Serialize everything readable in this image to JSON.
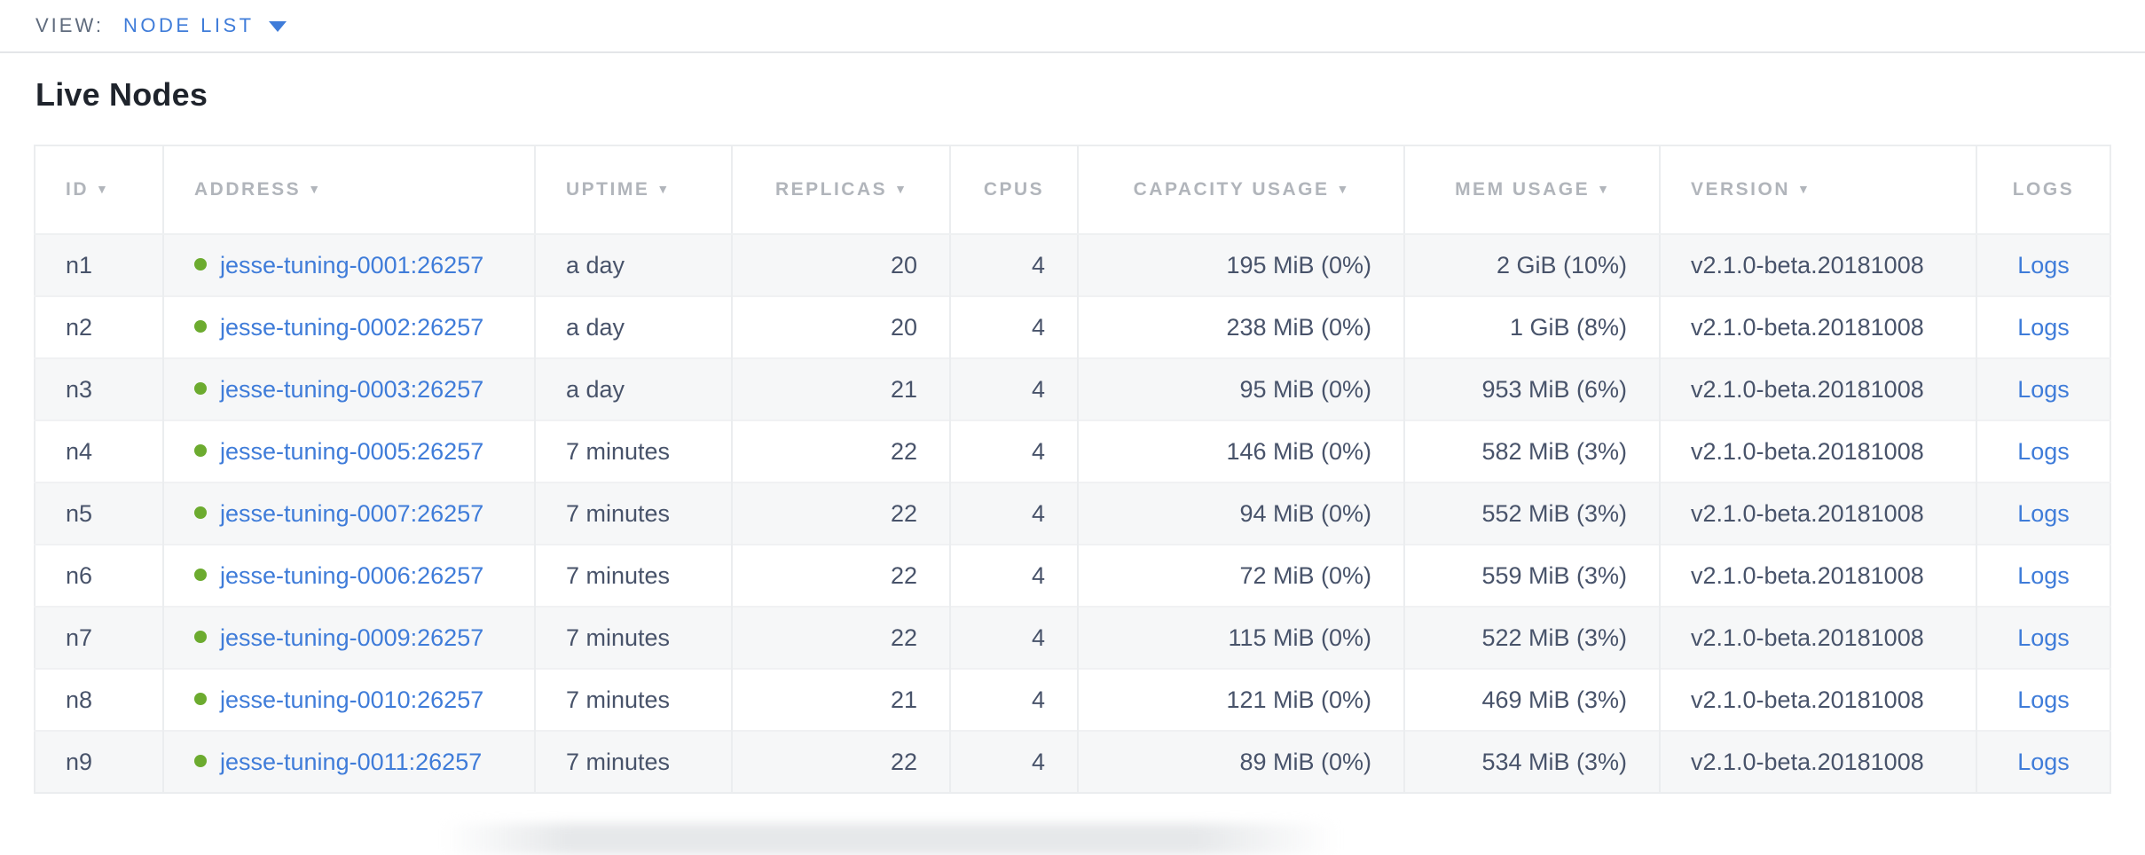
{
  "view_bar": {
    "label": "VIEW:",
    "selected": "NODE LIST",
    "dropdown_icon": "caret-down"
  },
  "page": {
    "title": "Live Nodes"
  },
  "table": {
    "sort_indicator": "▼",
    "columns": [
      {
        "key": "id",
        "label": "ID",
        "sortable": true
      },
      {
        "key": "address",
        "label": "ADDRESS",
        "sortable": true
      },
      {
        "key": "uptime",
        "label": "UPTIME",
        "sortable": true
      },
      {
        "key": "replicas",
        "label": "REPLICAS",
        "sortable": true
      },
      {
        "key": "cpus",
        "label": "CPUS",
        "sortable": false
      },
      {
        "key": "capacity",
        "label": "CAPACITY USAGE",
        "sortable": true
      },
      {
        "key": "mem",
        "label": "MEM USAGE",
        "sortable": true
      },
      {
        "key": "version",
        "label": "VERSION",
        "sortable": true
      },
      {
        "key": "logs",
        "label": "LOGS",
        "sortable": false
      }
    ],
    "rows": [
      {
        "id": "n1",
        "address": "jesse-tuning-0001:26257",
        "uptime": "a day",
        "replicas": "20",
        "cpus": "4",
        "capacity": "195 MiB (0%)",
        "mem": "2 GiB (10%)",
        "version": "v2.1.0-beta.20181008",
        "logs": "Logs",
        "status": "live"
      },
      {
        "id": "n2",
        "address": "jesse-tuning-0002:26257",
        "uptime": "a day",
        "replicas": "20",
        "cpus": "4",
        "capacity": "238 MiB (0%)",
        "mem": "1 GiB (8%)",
        "version": "v2.1.0-beta.20181008",
        "logs": "Logs",
        "status": "live"
      },
      {
        "id": "n3",
        "address": "jesse-tuning-0003:26257",
        "uptime": "a day",
        "replicas": "21",
        "cpus": "4",
        "capacity": "95 MiB (0%)",
        "mem": "953 MiB (6%)",
        "version": "v2.1.0-beta.20181008",
        "logs": "Logs",
        "status": "live"
      },
      {
        "id": "n4",
        "address": "jesse-tuning-0005:26257",
        "uptime": "7 minutes",
        "replicas": "22",
        "cpus": "4",
        "capacity": "146 MiB (0%)",
        "mem": "582 MiB (3%)",
        "version": "v2.1.0-beta.20181008",
        "logs": "Logs",
        "status": "live"
      },
      {
        "id": "n5",
        "address": "jesse-tuning-0007:26257",
        "uptime": "7 minutes",
        "replicas": "22",
        "cpus": "4",
        "capacity": "94 MiB (0%)",
        "mem": "552 MiB (3%)",
        "version": "v2.1.0-beta.20181008",
        "logs": "Logs",
        "status": "live"
      },
      {
        "id": "n6",
        "address": "jesse-tuning-0006:26257",
        "uptime": "7 minutes",
        "replicas": "22",
        "cpus": "4",
        "capacity": "72 MiB (0%)",
        "mem": "559 MiB (3%)",
        "version": "v2.1.0-beta.20181008",
        "logs": "Logs",
        "status": "live"
      },
      {
        "id": "n7",
        "address": "jesse-tuning-0009:26257",
        "uptime": "7 minutes",
        "replicas": "22",
        "cpus": "4",
        "capacity": "115 MiB (0%)",
        "mem": "522 MiB (3%)",
        "version": "v2.1.0-beta.20181008",
        "logs": "Logs",
        "status": "live"
      },
      {
        "id": "n8",
        "address": "jesse-tuning-0010:26257",
        "uptime": "7 minutes",
        "replicas": "21",
        "cpus": "4",
        "capacity": "121 MiB (0%)",
        "mem": "469 MiB (3%)",
        "version": "v2.1.0-beta.20181008",
        "logs": "Logs",
        "status": "live"
      },
      {
        "id": "n9",
        "address": "jesse-tuning-0011:26257",
        "uptime": "7 minutes",
        "replicas": "22",
        "cpus": "4",
        "capacity": "89 MiB (0%)",
        "mem": "534 MiB (3%)",
        "version": "v2.1.0-beta.20181008",
        "logs": "Logs",
        "status": "live"
      }
    ]
  },
  "colors": {
    "accent_blue": "#3f7cd9",
    "live_green": "#6cab2f",
    "header_text": "#b1b5bb",
    "body_text": "#48536a"
  }
}
